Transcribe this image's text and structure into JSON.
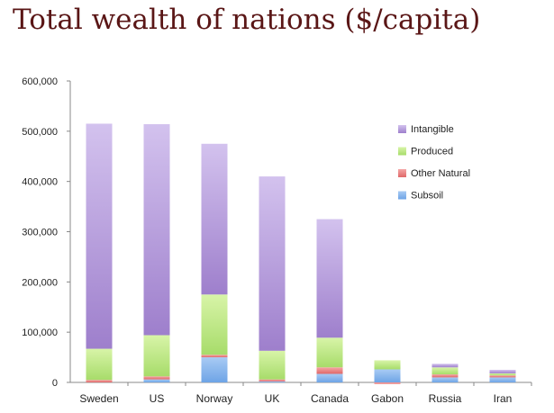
{
  "chart_data": {
    "type": "bar",
    "stacked": true,
    "title": "Total wealth of nations ($/capita)",
    "xlabel": "",
    "ylabel": "",
    "ylim": [
      0,
      600000
    ],
    "yticks": [
      0,
      100000,
      200000,
      300000,
      400000,
      500000,
      600000
    ],
    "ytick_labels": [
      "0",
      "100,000",
      "200,000",
      "300,000",
      "400,000",
      "500,000",
      "600,000"
    ],
    "categories": [
      "Sweden",
      "US",
      "Norway",
      "UK",
      "Canada",
      "Gabon",
      "Russia",
      "Iran"
    ],
    "series": [
      {
        "name": "Subsoil",
        "values": [
          0,
          6000,
          50000,
          2000,
          17000,
          26000,
          10000,
          10000
        ]
      },
      {
        "name": "Other Natural",
        "values": [
          5000,
          6000,
          5000,
          4000,
          13000,
          -3000,
          6000,
          4000
        ]
      },
      {
        "name": "Produced",
        "values": [
          62000,
          82000,
          120000,
          57000,
          59000,
          18000,
          14000,
          4000
        ]
      },
      {
        "name": "Intangible",
        "values": [
          448000,
          420000,
          300000,
          347000,
          236000,
          0,
          7000,
          7000
        ]
      }
    ],
    "legend_position": "right",
    "grid": false,
    "colors": {
      "Subsoil": "#8ab4ec",
      "Other Natural": "#ec8080",
      "Produced": "#c2ea8c",
      "Intangible": "#b9a1dd"
    }
  }
}
